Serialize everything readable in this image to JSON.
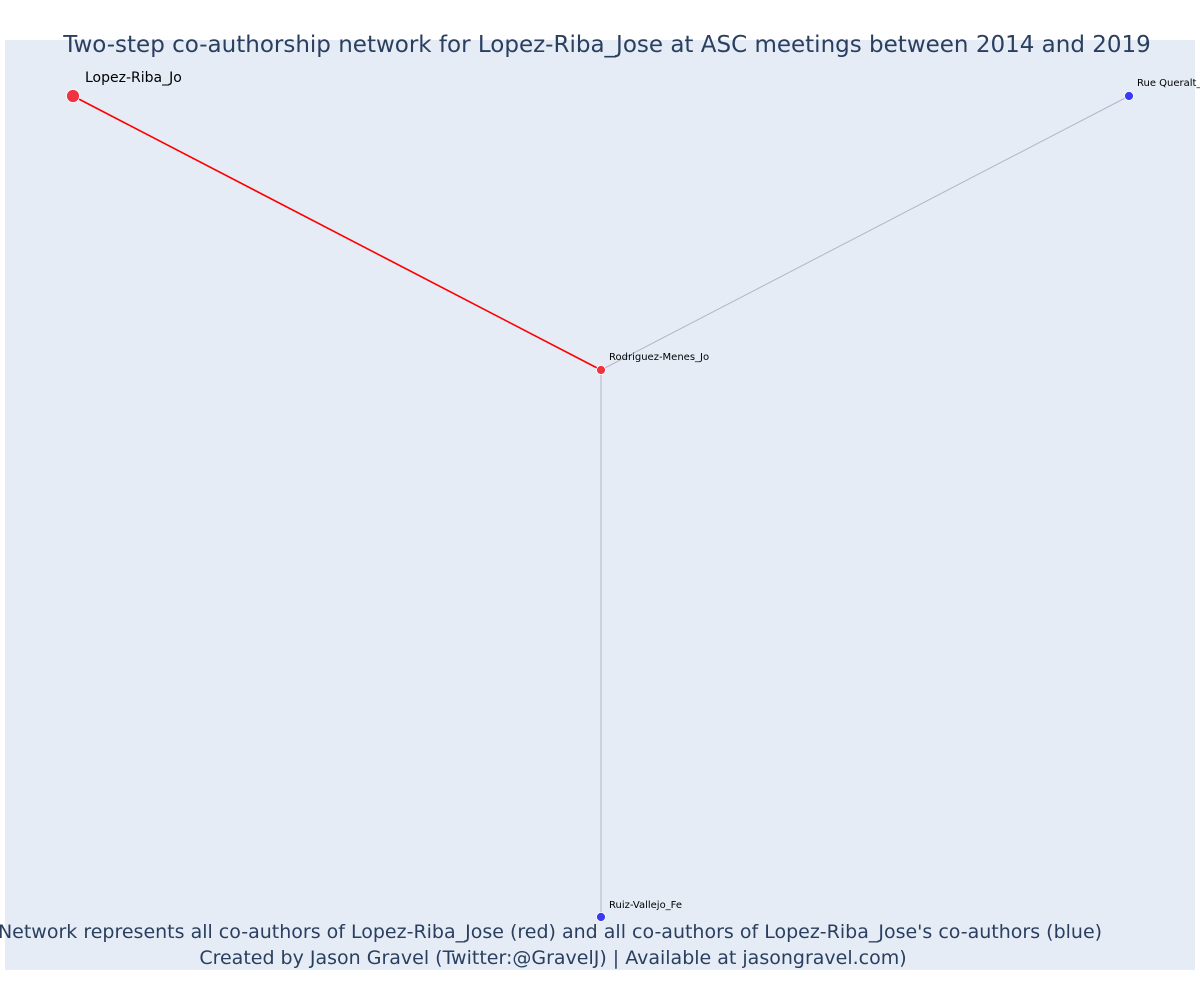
{
  "title": "Two-step co-authorship network for Lopez-Riba_Jose at ASC meetings between 2014 and 2019",
  "footer": {
    "line1": "Network represents all co-authors of Lopez-Riba_Jose (red) and all co-authors of Lopez-Riba_Jose's co-authors (blue)",
    "line2": "Created by Jason Gravel (Twitter:@GravelJ) | Available at jasongravel.com)"
  },
  "colors": {
    "plot_background": "#e5ecf6",
    "title": "#2a3f5f",
    "focal_node": "#ef3340",
    "coauthor_node": "#ef3340",
    "second_step_node": "#3b3bf5",
    "focal_edge": "#ff0000",
    "other_edge": "#b4b4c8"
  },
  "network": {
    "nodes": [
      {
        "id": "lopez",
        "label": "Lopez-Riba_Jo",
        "group": "focal"
      },
      {
        "id": "rodriguez",
        "label": "Rodriguez-Menes_Jo",
        "group": "coauthor"
      },
      {
        "id": "rue",
        "label": "Rue Queralt_",
        "group": "second_step"
      },
      {
        "id": "ruiz",
        "label": "Ruiz-Vallejo_Fe",
        "group": "second_step"
      }
    ],
    "edges": [
      {
        "source": "lopez",
        "target": "rodriguez",
        "type": "focal"
      },
      {
        "source": "rodriguez",
        "target": "rue",
        "type": "other"
      },
      {
        "source": "rodriguez",
        "target": "ruiz",
        "type": "other"
      }
    ]
  }
}
